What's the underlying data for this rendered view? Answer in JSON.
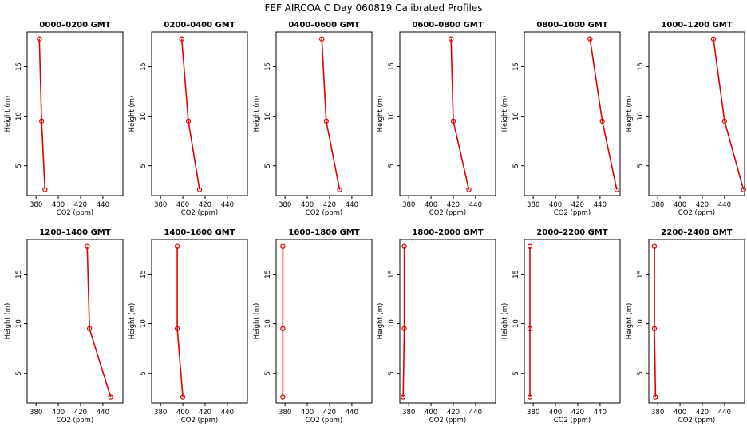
{
  "title": "FEF AIRCOA C  Day 060819  Calibrated Profiles",
  "colors": {
    "series": "#e00000",
    "axes": "#000000"
  },
  "chart_data": [
    {
      "type": "line",
      "title": "0000–0200 GMT",
      "xlabel": "CO2 (ppm)",
      "ylabel": "Height (m)",
      "xlim": [
        372,
        458
      ],
      "ylim": [
        2,
        18.5
      ],
      "xticks": [
        380,
        400,
        420,
        440
      ],
      "yticks": [
        5,
        10,
        15
      ],
      "points": [
        {
          "x": 383,
          "y": 17.8
        },
        {
          "x": 385,
          "y": 9.5
        },
        {
          "x": 388,
          "y": 2.6
        }
      ]
    },
    {
      "type": "line",
      "title": "0200–0400 GMT",
      "xlabel": "CO2 (ppm)",
      "ylabel": "Height (m)",
      "xlim": [
        372,
        458
      ],
      "ylim": [
        2,
        18.5
      ],
      "xticks": [
        380,
        400,
        420,
        440
      ],
      "yticks": [
        5,
        10,
        15
      ],
      "points": [
        {
          "x": 399,
          "y": 17.8
        },
        {
          "x": 405,
          "y": 9.5
        },
        {
          "x": 415,
          "y": 2.6
        }
      ]
    },
    {
      "type": "line",
      "title": "0400–0600 GMT",
      "xlabel": "CO2 (ppm)",
      "ylabel": "Height (m)",
      "xlim": [
        372,
        458
      ],
      "ylim": [
        2,
        18.5
      ],
      "xticks": [
        380,
        400,
        420,
        440
      ],
      "yticks": [
        5,
        10,
        15
      ],
      "points": [
        {
          "x": 413,
          "y": 17.8
        },
        {
          "x": 417,
          "y": 9.5
        },
        {
          "x": 429,
          "y": 2.6
        }
      ]
    },
    {
      "type": "line",
      "title": "0600–0800 GMT",
      "xlabel": "CO2 (ppm)",
      "ylabel": "Height (m)",
      "xlim": [
        372,
        458
      ],
      "ylim": [
        2,
        18.5
      ],
      "xticks": [
        380,
        400,
        420,
        440
      ],
      "yticks": [
        5,
        10,
        15
      ],
      "points": [
        {
          "x": 418,
          "y": 17.8
        },
        {
          "x": 420,
          "y": 9.5
        },
        {
          "x": 434,
          "y": 2.6
        }
      ]
    },
    {
      "type": "line",
      "title": "0800–1000 GMT",
      "xlabel": "CO2 (ppm)",
      "ylabel": "Height (m)",
      "xlim": [
        372,
        458
      ],
      "ylim": [
        2,
        18.5
      ],
      "xticks": [
        380,
        400,
        420,
        440
      ],
      "yticks": [
        5,
        10,
        15
      ],
      "points": [
        {
          "x": 431,
          "y": 17.8
        },
        {
          "x": 442,
          "y": 9.5
        },
        {
          "x": 455,
          "y": 2.6
        }
      ]
    },
    {
      "type": "line",
      "title": "1000–1200 GMT",
      "xlabel": "CO2 (ppm)",
      "ylabel": "Height (m)",
      "xlim": [
        372,
        458
      ],
      "ylim": [
        2,
        18.5
      ],
      "xticks": [
        380,
        400,
        420,
        440
      ],
      "yticks": [
        5,
        10,
        15
      ],
      "points": [
        {
          "x": 430,
          "y": 17.8
        },
        {
          "x": 440,
          "y": 9.5
        },
        {
          "x": 457,
          "y": 2.6
        }
      ]
    },
    {
      "type": "line",
      "title": "1200–1400 GMT",
      "xlabel": "CO2 (ppm)",
      "ylabel": "Height (m)",
      "xlim": [
        372,
        458
      ],
      "ylim": [
        2,
        18.5
      ],
      "xticks": [
        380,
        400,
        420,
        440
      ],
      "yticks": [
        5,
        10,
        15
      ],
      "points": [
        {
          "x": 426,
          "y": 17.8
        },
        {
          "x": 428,
          "y": 9.5
        },
        {
          "x": 447,
          "y": 2.6
        }
      ]
    },
    {
      "type": "line",
      "title": "1400–1600 GMT",
      "xlabel": "CO2 (ppm)",
      "ylabel": "Height (m)",
      "xlim": [
        372,
        458
      ],
      "ylim": [
        2,
        18.5
      ],
      "xticks": [
        380,
        400,
        420,
        440
      ],
      "yticks": [
        5,
        10,
        15
      ],
      "points": [
        {
          "x": 395,
          "y": 17.8
        },
        {
          "x": 395,
          "y": 9.5
        },
        {
          "x": 400,
          "y": 2.6
        }
      ]
    },
    {
      "type": "line",
      "title": "1600–1800 GMT",
      "xlabel": "CO2 (ppm)",
      "ylabel": "Height (m)",
      "xlim": [
        372,
        458
      ],
      "ylim": [
        2,
        18.5
      ],
      "xticks": [
        380,
        400,
        420,
        440
      ],
      "yticks": [
        5,
        10,
        15
      ],
      "points": [
        {
          "x": 378,
          "y": 17.8
        },
        {
          "x": 378,
          "y": 9.5
        },
        {
          "x": 378,
          "y": 2.6
        }
      ]
    },
    {
      "type": "line",
      "title": "1800–2000 GMT",
      "xlabel": "CO2 (ppm)",
      "ylabel": "Height (m)",
      "xlim": [
        372,
        458
      ],
      "ylim": [
        2,
        18.5
      ],
      "xticks": [
        380,
        400,
        420,
        440
      ],
      "yticks": [
        5,
        10,
        15
      ],
      "points": [
        {
          "x": 376,
          "y": 17.8
        },
        {
          "x": 376,
          "y": 9.5
        },
        {
          "x": 375,
          "y": 2.6
        }
      ]
    },
    {
      "type": "line",
      "title": "2000–2200 GMT",
      "xlabel": "CO2 (ppm)",
      "ylabel": "Height (m)",
      "xlim": [
        372,
        458
      ],
      "ylim": [
        2,
        18.5
      ],
      "xticks": [
        380,
        400,
        420,
        440
      ],
      "yticks": [
        5,
        10,
        15
      ],
      "points": [
        {
          "x": 377,
          "y": 17.8
        },
        {
          "x": 377,
          "y": 9.5
        },
        {
          "x": 377,
          "y": 2.6
        }
      ]
    },
    {
      "type": "line",
      "title": "2200–2400 GMT",
      "xlabel": "CO2 (ppm)",
      "ylabel": "Height (m)",
      "xlim": [
        372,
        458
      ],
      "ylim": [
        2,
        18.5
      ],
      "xticks": [
        380,
        400,
        420,
        440
      ],
      "yticks": [
        5,
        10,
        15
      ],
      "points": [
        {
          "x": 377,
          "y": 17.8
        },
        {
          "x": 377,
          "y": 9.5
        },
        {
          "x": 378,
          "y": 2.6
        }
      ]
    }
  ]
}
